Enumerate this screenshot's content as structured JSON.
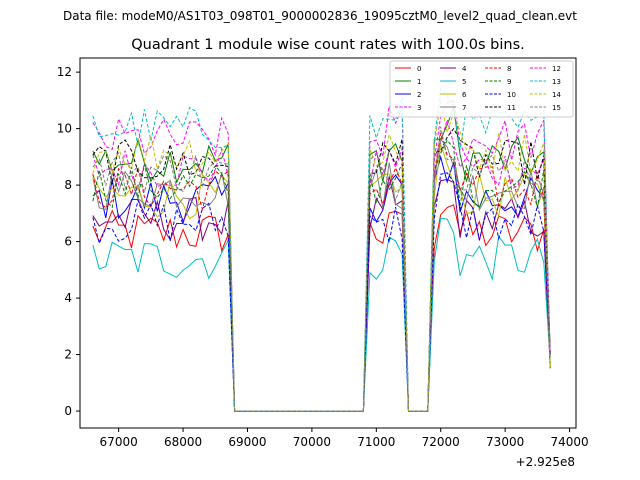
{
  "chart_data": {
    "type": "line",
    "suptitle": "Data file: modeM0/AS1T03_098T01_9000002836_19095cztM0_level2_quad_clean.evt",
    "title": "Quadrant 1 module wise count rates with 100.0s bins.",
    "xlabel": "",
    "ylabel": "",
    "x_offset_label": "+2.925e8",
    "xlim": [
      66400,
      74100
    ],
    "ylim": [
      -0.6,
      12.5
    ],
    "x_ticks": [
      67000,
      68000,
      69000,
      70000,
      71000,
      72000,
      73000,
      74000
    ],
    "y_ticks": [
      0,
      2,
      4,
      6,
      8,
      10,
      12
    ],
    "legend_position": "top-right",
    "legend_columns": 4,
    "series": [
      {
        "name": "0",
        "color": "#ff0000",
        "style": "solid",
        "level": 6.3
      },
      {
        "name": "1",
        "color": "#008000",
        "style": "solid",
        "level": 8.9
      },
      {
        "name": "2",
        "color": "#0000ff",
        "style": "solid",
        "level": 7.5
      },
      {
        "name": "3",
        "color": "#ff00ff",
        "style": "dashed",
        "level": 8.6
      },
      {
        "name": "4",
        "color": "#800080",
        "style": "solid",
        "level": 6.8
      },
      {
        "name": "5",
        "color": "#00bfbf",
        "style": "solid",
        "level": 5.4
      },
      {
        "name": "6",
        "color": "#bfbf00",
        "style": "solid",
        "level": 7.6
      },
      {
        "name": "7",
        "color": "#808080",
        "style": "solid",
        "level": 7.9
      },
      {
        "name": "8",
        "color": "#ff0000",
        "style": "dashed",
        "level": 7.9
      },
      {
        "name": "9",
        "color": "#008000",
        "style": "dashed",
        "level": 8.0
      },
      {
        "name": "10",
        "color": "#0000ff",
        "style": "dashed",
        "level": 6.7
      },
      {
        "name": "11",
        "color": "#000000",
        "style": "dashed",
        "level": 8.8
      },
      {
        "name": "12",
        "color": "#ff00ff",
        "style": "dashed",
        "level": 9.6
      },
      {
        "name": "13",
        "color": "#00bfbf",
        "style": "dashed",
        "level": 10.0
      },
      {
        "name": "14",
        "color": "#bfbf00",
        "style": "dashed",
        "level": 9.2
      },
      {
        "name": "15",
        "color": "#808080",
        "style": "dashed",
        "level": 8.5
      }
    ],
    "time_segments": [
      {
        "start": 66600,
        "end": 68700,
        "state": "on"
      },
      {
        "start": 68800,
        "end": 70800,
        "state": "off"
      },
      {
        "start": 70900,
        "end": 71400,
        "state": "on"
      },
      {
        "start": 71500,
        "end": 71800,
        "state": "off"
      },
      {
        "start": 71900,
        "end": 73600,
        "state": "on"
      }
    ]
  }
}
